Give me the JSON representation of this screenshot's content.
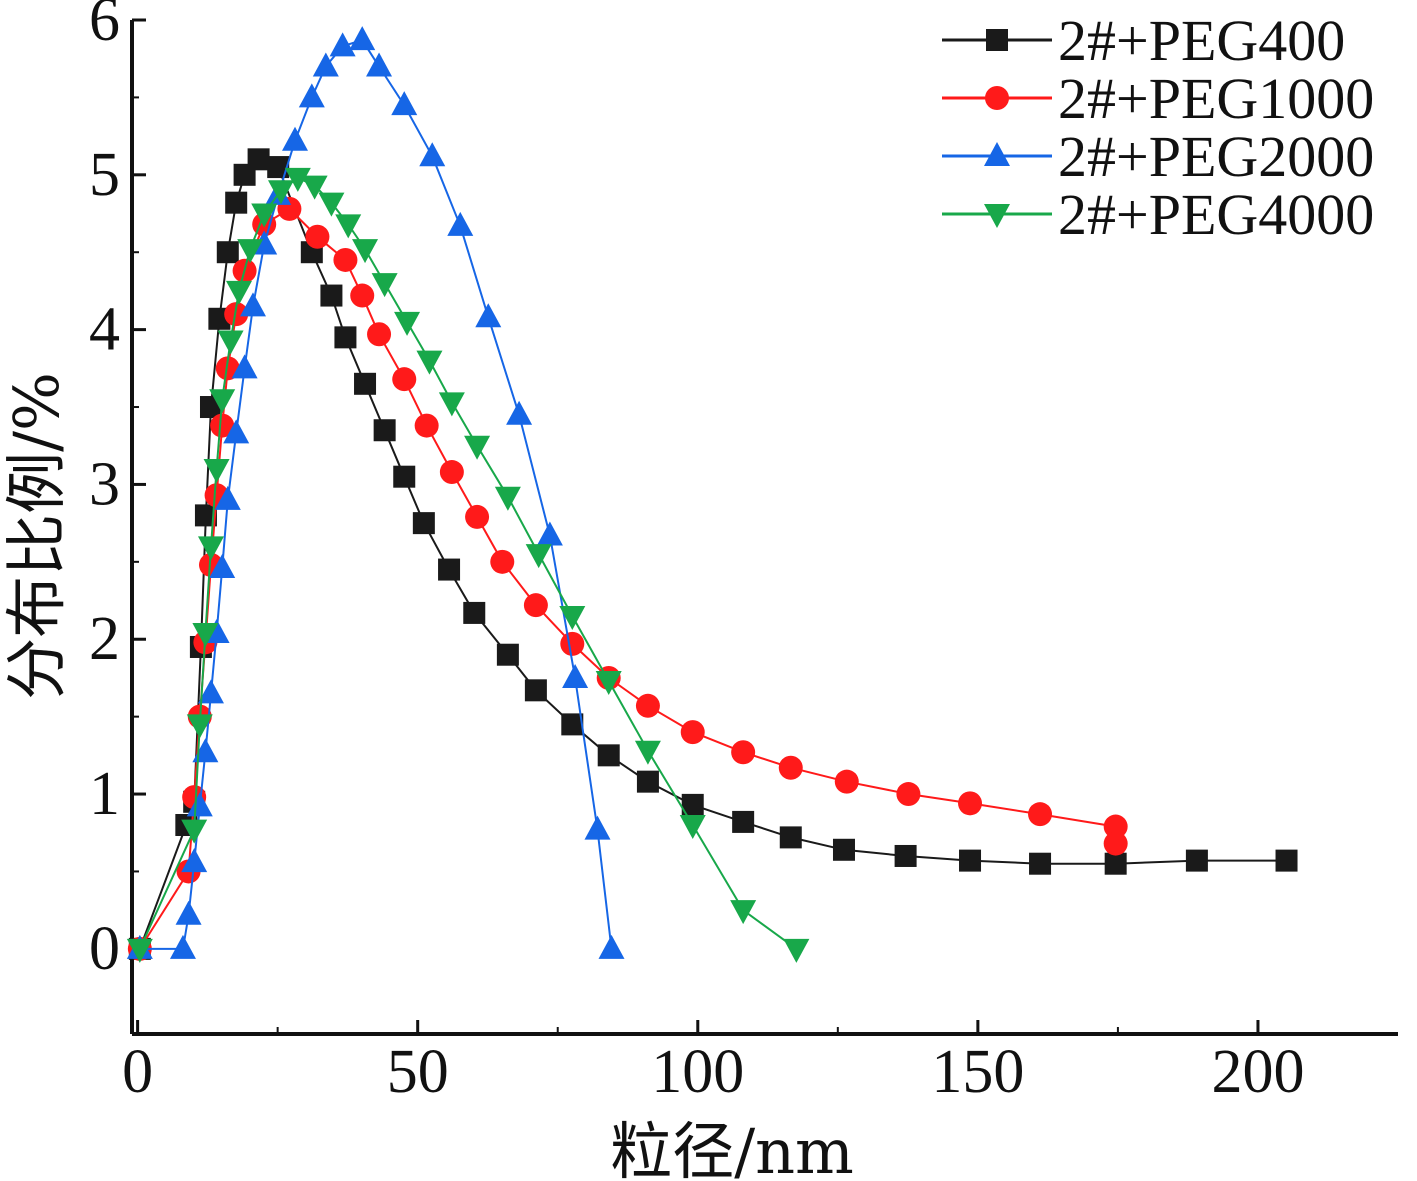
{
  "chart_data": {
    "type": "line",
    "xlabel": "粒径/nm",
    "ylabel": "分布比例/%",
    "xlim": [
      -1,
      225
    ],
    "ylim": [
      -0.55,
      6
    ],
    "x_ticks": [
      0,
      50,
      100,
      150,
      200
    ],
    "y_ticks": [
      0,
      1,
      2,
      3,
      4,
      5,
      6
    ],
    "grid": false,
    "legend_position": "top-right",
    "series": [
      {
        "name": "2#+PEG400",
        "color": "#1a1a1a",
        "marker": "square",
        "points": [
          [
            0.4,
            0
          ],
          [
            8.7,
            0.8
          ],
          [
            10.1,
            0.95
          ],
          [
            11.3,
            1.95
          ],
          [
            12.2,
            2.8
          ],
          [
            13.1,
            3.5
          ],
          [
            14.6,
            4.07
          ],
          [
            16.1,
            4.5
          ],
          [
            17.6,
            4.82
          ],
          [
            19.1,
            5.0
          ],
          [
            21.6,
            5.1
          ],
          [
            25.1,
            5.05
          ],
          [
            31.1,
            4.5
          ],
          [
            34.6,
            4.22
          ],
          [
            37.1,
            3.95
          ],
          [
            40.6,
            3.65
          ],
          [
            44.1,
            3.35
          ],
          [
            47.6,
            3.05
          ],
          [
            51.1,
            2.75
          ],
          [
            55.6,
            2.45
          ],
          [
            60.1,
            2.17
          ],
          [
            66.1,
            1.9
          ],
          [
            71.1,
            1.67
          ],
          [
            77.6,
            1.45
          ],
          [
            84.1,
            1.25
          ],
          [
            91.1,
            1.08
          ],
          [
            99.1,
            0.93
          ],
          [
            108.1,
            0.82
          ],
          [
            116.6,
            0.72
          ],
          [
            126.1,
            0.64
          ],
          [
            137.1,
            0.6
          ],
          [
            148.6,
            0.57
          ],
          [
            161.1,
            0.55
          ],
          [
            174.6,
            0.55
          ],
          [
            189.1,
            0.57
          ],
          [
            205.1,
            0.57
          ]
        ]
      },
      {
        "name": "2#+PEG1000",
        "color": "#ff1a1a",
        "marker": "circle",
        "points": [
          [
            0.4,
            0
          ],
          [
            9.1,
            0.5
          ],
          [
            10.1,
            0.98
          ],
          [
            11.1,
            1.5
          ],
          [
            12.1,
            1.98
          ],
          [
            13.1,
            2.48
          ],
          [
            14.1,
            2.93
          ],
          [
            15.1,
            3.38
          ],
          [
            16.1,
            3.75
          ],
          [
            17.6,
            4.1
          ],
          [
            19.1,
            4.38
          ],
          [
            22.6,
            4.68
          ],
          [
            27.1,
            4.78
          ],
          [
            32.1,
            4.6
          ],
          [
            37.1,
            4.45
          ],
          [
            40.1,
            4.22
          ],
          [
            43.1,
            3.97
          ],
          [
            47.6,
            3.68
          ],
          [
            51.6,
            3.38
          ],
          [
            56.1,
            3.08
          ],
          [
            60.6,
            2.79
          ],
          [
            65.1,
            2.5
          ],
          [
            71.1,
            2.22
          ],
          [
            77.6,
            1.97
          ],
          [
            84.1,
            1.75
          ],
          [
            91.1,
            1.57
          ],
          [
            99.1,
            1.4
          ],
          [
            108.1,
            1.27
          ],
          [
            116.6,
            1.17
          ],
          [
            126.6,
            1.08
          ],
          [
            137.6,
            1.0
          ],
          [
            148.6,
            0.94
          ],
          [
            161.1,
            0.87
          ],
          [
            174.6,
            0.79
          ],
          [
            174.6,
            0.68
          ]
        ]
      },
      {
        "name": "2#+PEG2000",
        "color": "#1666e6",
        "marker": "triangle-up",
        "points": [
          [
            0.4,
            0
          ],
          [
            8.1,
            0
          ],
          [
            9.1,
            0.22
          ],
          [
            10.1,
            0.56
          ],
          [
            11.1,
            0.92
          ],
          [
            12.1,
            1.27
          ],
          [
            13.1,
            1.65
          ],
          [
            14.1,
            2.04
          ],
          [
            15.1,
            2.46
          ],
          [
            16.1,
            2.9
          ],
          [
            17.6,
            3.33
          ],
          [
            19.1,
            3.75
          ],
          [
            20.6,
            4.15
          ],
          [
            22.6,
            4.55
          ],
          [
            25.1,
            4.87
          ],
          [
            28.1,
            5.22
          ],
          [
            31.1,
            5.5
          ],
          [
            33.6,
            5.7
          ],
          [
            36.6,
            5.83
          ],
          [
            40.1,
            5.87
          ],
          [
            43.1,
            5.7
          ],
          [
            47.6,
            5.45
          ],
          [
            52.6,
            5.12
          ],
          [
            57.6,
            4.67
          ],
          [
            62.6,
            4.08
          ],
          [
            68.1,
            3.45
          ],
          [
            73.6,
            2.67
          ],
          [
            78.1,
            1.75
          ],
          [
            82.1,
            0.77
          ],
          [
            84.6,
            0
          ]
        ]
      },
      {
        "name": "2#+PEG4000",
        "color": "#18a84a",
        "marker": "triangle-down",
        "points": [
          [
            0.4,
            0
          ],
          [
            10.1,
            0.77
          ],
          [
            11.1,
            1.45
          ],
          [
            12.1,
            2.04
          ],
          [
            13.1,
            2.6
          ],
          [
            14.1,
            3.1
          ],
          [
            15.1,
            3.55
          ],
          [
            16.6,
            3.93
          ],
          [
            18.1,
            4.25
          ],
          [
            20.1,
            4.52
          ],
          [
            22.6,
            4.75
          ],
          [
            25.6,
            4.9
          ],
          [
            28.6,
            4.98
          ],
          [
            31.6,
            4.93
          ],
          [
            34.6,
            4.82
          ],
          [
            37.6,
            4.68
          ],
          [
            40.6,
            4.52
          ],
          [
            44.1,
            4.3
          ],
          [
            48.1,
            4.05
          ],
          [
            52.1,
            3.8
          ],
          [
            56.1,
            3.53
          ],
          [
            60.6,
            3.25
          ],
          [
            66.1,
            2.92
          ],
          [
            71.6,
            2.55
          ],
          [
            77.6,
            2.15
          ],
          [
            84.1,
            1.73
          ],
          [
            91.1,
            1.28
          ],
          [
            99.1,
            0.8
          ],
          [
            108.1,
            0.25
          ],
          [
            117.6,
            0
          ]
        ]
      }
    ]
  }
}
